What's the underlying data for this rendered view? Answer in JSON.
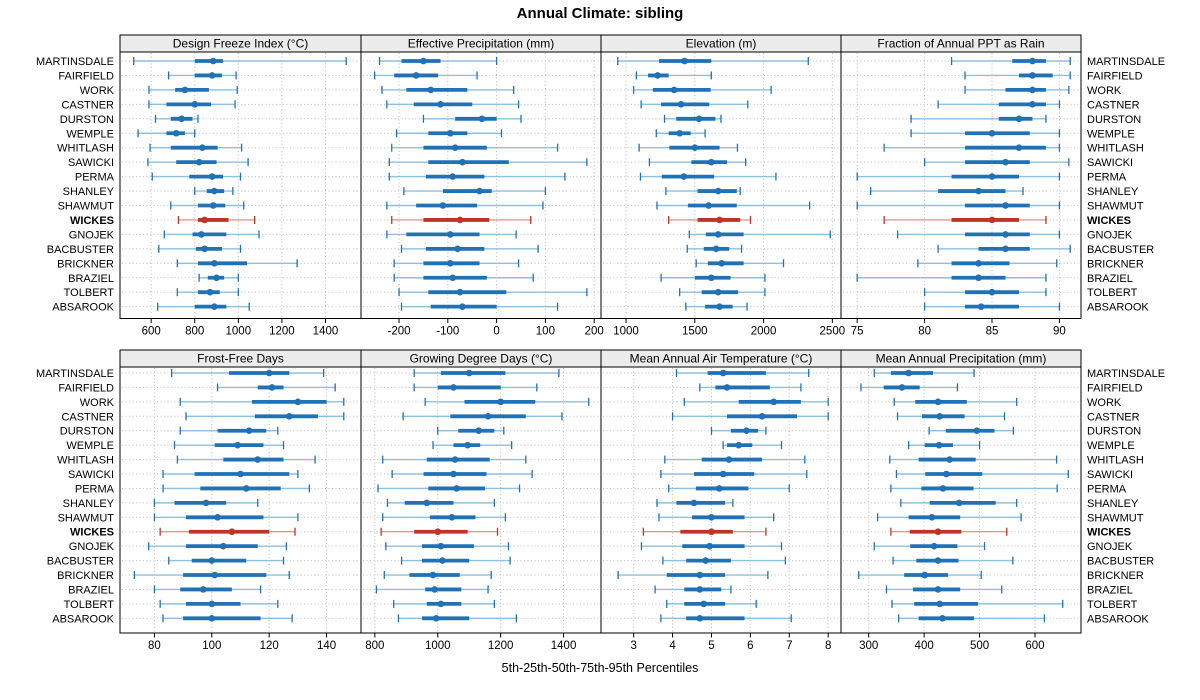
{
  "title": "Annual Climate: sibling",
  "caption": "5th-25th-50th-75th-95th Percentiles",
  "colors": {
    "normal": "#2171b5",
    "normal_light": "#8fc0de",
    "highlight": "#c03425",
    "highlight_light": "#e09a90",
    "strip_bg": "#ececec",
    "grid": "#bdbdbd",
    "border": "#000000"
  },
  "chart_data": {
    "type": "interval-dotplot",
    "percentiles": [
      "5th",
      "25th",
      "50th",
      "75th",
      "95th"
    ],
    "highlight_station": "WICKES",
    "stations": [
      "MARTINSDALE",
      "FAIRFIELD",
      "WORK",
      "CASTNER",
      "DURSTON",
      "WEMPLE",
      "WHITLASH",
      "SAWICKI",
      "PERMA",
      "SHANLEY",
      "SHAWMUT",
      "WICKES",
      "GNOJEK",
      "BACBUSTER",
      "BRICKNER",
      "BRAZIEL",
      "TOLBERT",
      "ABSAROOK"
    ],
    "panels": [
      {
        "title": "Design Freeze Index (°C)",
        "ticks": [
          600,
          800,
          1000,
          1200,
          1400
        ],
        "xlim": [
          457,
          1563
        ],
        "values": [
          [
            520,
            800,
            885,
            930,
            1495
          ],
          [
            680,
            800,
            880,
            925,
            990
          ],
          [
            590,
            710,
            755,
            865,
            995
          ],
          [
            590,
            670,
            800,
            875,
            985
          ],
          [
            620,
            690,
            740,
            790,
            815
          ],
          [
            540,
            670,
            715,
            755,
            800
          ],
          [
            595,
            690,
            835,
            905,
            1015
          ],
          [
            585,
            715,
            820,
            900,
            1045
          ],
          [
            605,
            775,
            880,
            930,
            1010
          ],
          [
            800,
            855,
            890,
            935,
            975
          ],
          [
            690,
            815,
            885,
            940,
            1025
          ],
          [
            725,
            815,
            845,
            955,
            1075
          ],
          [
            660,
            790,
            830,
            945,
            1095
          ],
          [
            635,
            805,
            845,
            925,
            1010
          ],
          [
            720,
            815,
            890,
            1040,
            1270
          ],
          [
            820,
            860,
            900,
            935,
            1000
          ],
          [
            720,
            815,
            870,
            915,
            1000
          ],
          [
            630,
            800,
            890,
            945,
            1050
          ]
        ]
      },
      {
        "title": "Effective Precipitation (mm)",
        "ticks": [
          -200,
          -100,
          0,
          100,
          200
        ],
        "xlim": [
          -278,
          214
        ],
        "values": [
          [
            -240,
            -195,
            -150,
            -115,
            0
          ],
          [
            -250,
            -210,
            -165,
            -120,
            -40
          ],
          [
            -235,
            -185,
            -135,
            -60,
            35
          ],
          [
            -225,
            -170,
            -115,
            -50,
            45
          ],
          [
            -150,
            -85,
            -30,
            0,
            50
          ],
          [
            -205,
            -140,
            -95,
            -60,
            10
          ],
          [
            -215,
            -150,
            -85,
            -20,
            125
          ],
          [
            -220,
            -140,
            -70,
            25,
            185
          ],
          [
            -220,
            -145,
            -90,
            -25,
            140
          ],
          [
            -190,
            -110,
            -35,
            -10,
            100
          ],
          [
            -225,
            -165,
            -110,
            -40,
            95
          ],
          [
            -215,
            -150,
            -75,
            -15,
            70
          ],
          [
            -225,
            -185,
            -95,
            -35,
            40
          ],
          [
            -195,
            -145,
            -80,
            -25,
            85
          ],
          [
            -210,
            -150,
            -95,
            -35,
            45
          ],
          [
            -210,
            -150,
            -90,
            -20,
            75
          ],
          [
            -200,
            -140,
            -75,
            20,
            185
          ],
          [
            -195,
            -135,
            -70,
            0,
            125
          ]
        ]
      },
      {
        "title": "Elevation (m)",
        "ticks": [
          1000,
          1500,
          2000,
          2500
        ],
        "xlim": [
          818,
          2563
        ],
        "values": [
          [
            940,
            1240,
            1425,
            1620,
            2325
          ],
          [
            1075,
            1160,
            1230,
            1310,
            1620
          ],
          [
            1055,
            1195,
            1350,
            1615,
            2055
          ],
          [
            1110,
            1255,
            1400,
            1605,
            1885
          ],
          [
            1280,
            1365,
            1530,
            1650,
            1690
          ],
          [
            1220,
            1310,
            1390,
            1470,
            1575
          ],
          [
            1095,
            1315,
            1500,
            1680,
            1810
          ],
          [
            1170,
            1475,
            1620,
            1735,
            1870
          ],
          [
            1105,
            1260,
            1420,
            1640,
            2090
          ],
          [
            1290,
            1520,
            1670,
            1805,
            1830
          ],
          [
            1225,
            1450,
            1600,
            1805,
            2335
          ],
          [
            1310,
            1520,
            1680,
            1830,
            1905
          ],
          [
            1460,
            1580,
            1670,
            1855,
            2485
          ],
          [
            1445,
            1565,
            1655,
            1750,
            1840
          ],
          [
            1510,
            1595,
            1695,
            1855,
            2145
          ],
          [
            1255,
            1500,
            1620,
            1760,
            2010
          ],
          [
            1390,
            1550,
            1670,
            1815,
            2010
          ],
          [
            1435,
            1575,
            1680,
            1775,
            1880
          ]
        ]
      },
      {
        "title": "Fraction of Annual PPT as Rain",
        "ticks": [
          75,
          80,
          85,
          90
        ],
        "xlim": [
          73.8,
          91.6
        ],
        "values": [
          [
            82,
            86.5,
            88,
            89,
            90.8
          ],
          [
            83,
            87,
            88,
            89.5,
            90.8
          ],
          [
            83,
            86,
            88,
            89,
            90.7
          ],
          [
            81,
            85.5,
            88,
            89,
            90
          ],
          [
            79,
            85.5,
            87,
            88,
            89
          ],
          [
            79,
            83,
            85,
            87.8,
            90
          ],
          [
            77,
            83,
            87,
            89,
            90
          ],
          [
            80,
            83,
            86,
            87.8,
            90.7
          ],
          [
            75,
            82,
            85,
            87,
            90
          ],
          [
            76,
            81,
            84,
            86,
            87.3
          ],
          [
            75,
            83,
            86,
            87.8,
            90
          ],
          [
            77,
            82,
            85,
            87,
            89
          ],
          [
            78,
            83,
            86,
            87.8,
            90
          ],
          [
            81,
            84,
            86,
            87.8,
            90.8
          ],
          [
            79.5,
            82,
            84,
            86.3,
            89.8
          ],
          [
            75,
            82,
            84,
            86,
            89
          ],
          [
            80,
            83,
            85,
            87,
            89
          ],
          [
            80,
            83,
            84.2,
            87,
            90
          ]
        ]
      },
      {
        "title": "Frost-Free Days",
        "ticks": [
          80,
          100,
          120,
          140
        ],
        "xlim": [
          68,
          152
        ],
        "values": [
          [
            86,
            106,
            120,
            127,
            139
          ],
          [
            102,
            116,
            121,
            125,
            143
          ],
          [
            89,
            114,
            130,
            140,
            146
          ],
          [
            91,
            115,
            127,
            137,
            146
          ],
          [
            89,
            102,
            113,
            119,
            123
          ],
          [
            87,
            101,
            109,
            118,
            125
          ],
          [
            88,
            104,
            116,
            125,
            136
          ],
          [
            83,
            94,
            110,
            127,
            130
          ],
          [
            83,
            96,
            112,
            124,
            134
          ],
          [
            80,
            87,
            98,
            105,
            116
          ],
          [
            80,
            91,
            102,
            118,
            130
          ],
          [
            82,
            92,
            107,
            120,
            129
          ],
          [
            78,
            91,
            104,
            116,
            126
          ],
          [
            85,
            93,
            100,
            112,
            125
          ],
          [
            73,
            90,
            101,
            119,
            127
          ],
          [
            80,
            89,
            97,
            107,
            117
          ],
          [
            82,
            91,
            100,
            110,
            123
          ],
          [
            83,
            90,
            100,
            117,
            128
          ]
        ]
      },
      {
        "title": "Growing Degree Days (°C)",
        "ticks": [
          800,
          1000,
          1200,
          1400
        ],
        "xlim": [
          756,
          1519
        ],
        "values": [
          [
            925,
            1010,
            1100,
            1215,
            1385
          ],
          [
            925,
            1000,
            1050,
            1200,
            1315
          ],
          [
            960,
            1085,
            1200,
            1310,
            1480
          ],
          [
            890,
            1040,
            1160,
            1280,
            1395
          ],
          [
            1000,
            1065,
            1130,
            1180,
            1210
          ],
          [
            985,
            1050,
            1095,
            1135,
            1235
          ],
          [
            825,
            965,
            1055,
            1165,
            1280
          ],
          [
            855,
            955,
            1050,
            1155,
            1300
          ],
          [
            810,
            970,
            1060,
            1150,
            1260
          ],
          [
            840,
            895,
            965,
            1050,
            1180
          ],
          [
            825,
            975,
            1045,
            1120,
            1215
          ],
          [
            820,
            925,
            1000,
            1095,
            1190
          ],
          [
            835,
            950,
            1010,
            1115,
            1225
          ],
          [
            885,
            950,
            1015,
            1100,
            1230
          ],
          [
            830,
            910,
            985,
            1070,
            1170
          ],
          [
            805,
            960,
            990,
            1075,
            1160
          ],
          [
            860,
            965,
            1010,
            1075,
            1180
          ],
          [
            875,
            950,
            995,
            1100,
            1250
          ]
        ]
      },
      {
        "title": "Mean Annual Air Temperature (°C)",
        "ticks": [
          3,
          4,
          5,
          6,
          7,
          8
        ],
        "xlim": [
          2.16,
          8.33
        ],
        "values": [
          [
            4.1,
            4.9,
            5.3,
            6.4,
            7.5
          ],
          [
            4.7,
            5.1,
            5.4,
            6.5,
            7.3
          ],
          [
            4.3,
            5.7,
            6.6,
            7.3,
            8.0
          ],
          [
            4.0,
            5.4,
            6.3,
            7.2,
            8.0
          ],
          [
            5.0,
            5.5,
            5.9,
            6.2,
            6.4
          ],
          [
            5.3,
            5.4,
            5.7,
            6.05,
            6.8
          ],
          [
            3.8,
            4.75,
            5.45,
            6.3,
            7.4
          ],
          [
            3.7,
            4.55,
            5.3,
            6.1,
            7.45
          ],
          [
            3.9,
            4.6,
            5.2,
            5.95,
            7.0
          ],
          [
            3.6,
            4.1,
            4.55,
            5.35,
            5.55
          ],
          [
            3.65,
            4.5,
            5.0,
            5.85,
            6.6
          ],
          [
            3.25,
            4.2,
            5.0,
            5.55,
            6.4
          ],
          [
            3.2,
            4.25,
            4.95,
            5.85,
            6.8
          ],
          [
            3.75,
            4.35,
            4.85,
            5.5,
            6.9
          ],
          [
            2.6,
            3.85,
            4.7,
            5.35,
            6.45
          ],
          [
            3.55,
            4.3,
            4.7,
            5.25,
            5.5
          ],
          [
            3.85,
            4.3,
            4.8,
            5.35,
            6.15
          ],
          [
            3.7,
            4.35,
            4.7,
            5.85,
            7.05
          ]
        ]
      },
      {
        "title": "Mean Annual Precipitation (mm)",
        "ticks": [
          300,
          400,
          500,
          600
        ],
        "xlim": [
          250,
          683
        ],
        "values": [
          [
            310,
            340,
            372,
            416,
            490
          ],
          [
            286,
            327,
            360,
            392,
            460
          ],
          [
            346,
            384,
            425,
            477,
            567
          ],
          [
            352,
            396,
            428,
            473,
            545
          ],
          [
            409,
            439,
            495,
            527,
            561
          ],
          [
            372,
            401,
            427,
            452,
            500
          ],
          [
            338,
            390,
            446,
            493,
            639
          ],
          [
            350,
            402,
            440,
            505,
            660
          ],
          [
            340,
            395,
            434,
            489,
            640
          ],
          [
            358,
            410,
            463,
            529,
            567
          ],
          [
            316,
            372,
            414,
            465,
            575
          ],
          [
            340,
            374,
            425,
            467,
            549
          ],
          [
            310,
            375,
            418,
            460,
            509
          ],
          [
            344,
            386,
            425,
            462,
            560
          ],
          [
            282,
            364,
            401,
            443,
            503
          ],
          [
            332,
            380,
            425,
            465,
            540
          ],
          [
            342,
            382,
            428,
            497,
            650
          ],
          [
            354,
            390,
            433,
            490,
            617
          ]
        ]
      }
    ]
  }
}
